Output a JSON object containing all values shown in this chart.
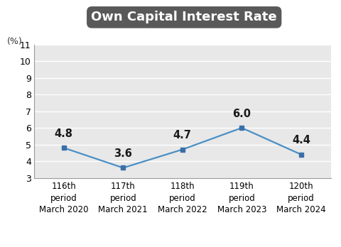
{
  "title": "Own Capital Interest Rate",
  "ylabel_text": "(%)",
  "x_labels": [
    "116th\nperiod\nMarch 2020",
    "117th\nperiod\nMarch 2021",
    "118th\nperiod\nMarch 2022",
    "119th\nperiod\nMarch 2023",
    "120th\nperiod\nMarch 2024"
  ],
  "x_values": [
    0,
    1,
    2,
    3,
    4
  ],
  "y_values": [
    4.8,
    3.6,
    4.7,
    6.0,
    4.4
  ],
  "ylim": [
    3,
    11
  ],
  "yticks": [
    3,
    4,
    5,
    6,
    7,
    8,
    9,
    10,
    11
  ],
  "line_color": "#4a8fc4",
  "marker_color": "#3a6fa8",
  "marker_size": 5,
  "line_width": 1.6,
  "title_bg_color": "#595959",
  "title_text_color": "#ffffff",
  "title_fontsize": 13,
  "annotation_fontsize": 10.5,
  "tick_fontsize": 8.5,
  "plot_bg_color": "#e8e8e8",
  "fig_bg_color": "#ffffff",
  "grid_color": "#ffffff"
}
